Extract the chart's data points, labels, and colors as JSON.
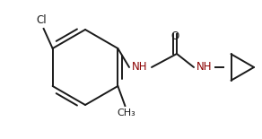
{
  "bg_color": "#ffffff",
  "line_color": "#1a1a1a",
  "text_color": "#1a1a1a",
  "nh_color": "#8B0000",
  "cl_label": "Cl",
  "o_label": "O",
  "nh_label": "NH",
  "lw": 1.4
}
